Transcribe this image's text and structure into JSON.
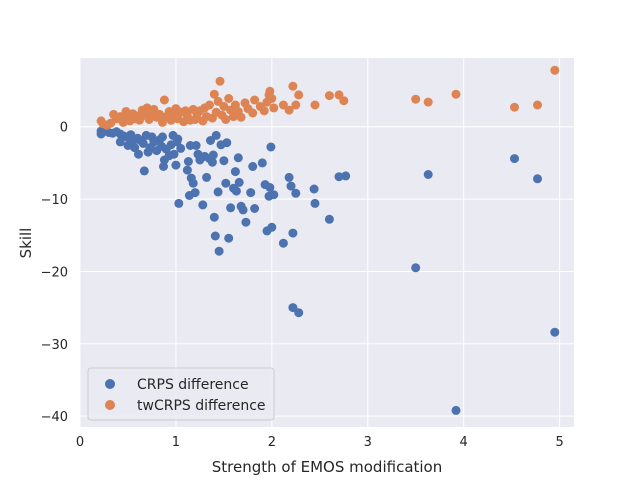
{
  "chart_data": {
    "type": "scatter",
    "title": "",
    "xlabel": "Strength of EMOS modification",
    "ylabel": "Skill",
    "xlim": [
      0,
      5.15
    ],
    "ylim": [
      -41.5,
      9.5
    ],
    "xticks": [
      "0",
      "1",
      "2",
      "3",
      "4",
      "5"
    ],
    "xtick_values": [
      0,
      1,
      2,
      3,
      4,
      5
    ],
    "yticks": [
      "0",
      "−10",
      "−20",
      "−30",
      "−40"
    ],
    "ytick_values": [
      0,
      -10,
      -20,
      -30,
      -40
    ],
    "grid": true,
    "background": "#eaeaf2",
    "legend_position": "lower-left",
    "series": [
      {
        "name": "CRPS difference",
        "color": "#4c72b0",
        "points": [
          [
            0.22,
            -0.6
          ],
          [
            0.22,
            -1.0
          ],
          [
            0.26,
            -0.5
          ],
          [
            0.3,
            -0.8
          ],
          [
            0.34,
            -0.9
          ],
          [
            0.38,
            -0.7
          ],
          [
            0.42,
            -1.0
          ],
          [
            0.42,
            -2.1
          ],
          [
            0.46,
            -1.3
          ],
          [
            0.5,
            -1.5
          ],
          [
            0.5,
            -2.6
          ],
          [
            0.53,
            -1.1
          ],
          [
            0.55,
            -2.0
          ],
          [
            0.57,
            -2.9
          ],
          [
            0.6,
            -1.6
          ],
          [
            0.61,
            -3.8
          ],
          [
            0.63,
            -1.9
          ],
          [
            0.66,
            -2.3
          ],
          [
            0.67,
            -6.1
          ],
          [
            0.69,
            -1.2
          ],
          [
            0.71,
            -3.5
          ],
          [
            0.73,
            -2.9
          ],
          [
            0.75,
            -1.4
          ],
          [
            0.77,
            -2.1
          ],
          [
            0.8,
            -3.3
          ],
          [
            0.83,
            -1.8
          ],
          [
            0.85,
            -2.7
          ],
          [
            0.86,
            -1.4
          ],
          [
            0.87,
            -5.5
          ],
          [
            0.88,
            -4.6
          ],
          [
            0.9,
            -3.1
          ],
          [
            0.93,
            -4.0
          ],
          [
            0.95,
            -2.5
          ],
          [
            0.97,
            -1.2
          ],
          [
            0.98,
            -3.8
          ],
          [
            1.0,
            -5.3
          ],
          [
            1.01,
            -2.1
          ],
          [
            1.02,
            -1.7
          ],
          [
            1.03,
            -10.6
          ],
          [
            1.05,
            -3.0
          ],
          [
            1.12,
            -6.0
          ],
          [
            1.13,
            -4.8
          ],
          [
            1.14,
            -9.5
          ],
          [
            1.15,
            -2.6
          ],
          [
            1.16,
            -7.1
          ],
          [
            1.18,
            -7.8
          ],
          [
            1.2,
            -9.1
          ],
          [
            1.21,
            -2.6
          ],
          [
            1.23,
            -3.8
          ],
          [
            1.25,
            -4.6
          ],
          [
            1.28,
            -10.8
          ],
          [
            1.3,
            -4.1
          ],
          [
            1.32,
            -7.0
          ],
          [
            1.35,
            -4.4
          ],
          [
            1.36,
            -1.9
          ],
          [
            1.38,
            -4.9
          ],
          [
            1.39,
            -3.9
          ],
          [
            1.4,
            -12.5
          ],
          [
            1.41,
            -15.1
          ],
          [
            1.42,
            -1.2
          ],
          [
            1.44,
            -9.0
          ],
          [
            1.45,
            -17.2
          ],
          [
            1.47,
            -2.5
          ],
          [
            1.5,
            -4.7
          ],
          [
            1.52,
            -7.8
          ],
          [
            1.53,
            -2.2
          ],
          [
            1.55,
            -15.4
          ],
          [
            1.57,
            -11.2
          ],
          [
            1.6,
            -8.5
          ],
          [
            1.62,
            -6.2
          ],
          [
            1.63,
            -8.9
          ],
          [
            1.65,
            -4.3
          ],
          [
            1.66,
            -7.7
          ],
          [
            1.68,
            -11.0
          ],
          [
            1.7,
            -11.5
          ],
          [
            1.73,
            -13.2
          ],
          [
            1.78,
            -9.1
          ],
          [
            1.8,
            -5.5
          ],
          [
            1.82,
            -11.3
          ],
          [
            1.9,
            -5.0
          ],
          [
            1.93,
            -8.0
          ],
          [
            1.95,
            -14.4
          ],
          [
            1.97,
            -9.6
          ],
          [
            1.98,
            -8.4
          ],
          [
            1.99,
            -2.8
          ],
          [
            2.0,
            -13.9
          ],
          [
            2.02,
            -9.4
          ],
          [
            2.12,
            -16.1
          ],
          [
            2.18,
            -7.0
          ],
          [
            2.2,
            -8.2
          ],
          [
            2.22,
            -14.7
          ],
          [
            2.22,
            -25.0
          ],
          [
            2.25,
            -9.2
          ],
          [
            2.28,
            -25.7
          ],
          [
            2.44,
            -8.6
          ],
          [
            2.45,
            -10.6
          ],
          [
            2.6,
            -12.8
          ],
          [
            2.7,
            -6.9
          ],
          [
            2.77,
            -6.8
          ],
          [
            3.5,
            -19.5
          ],
          [
            3.63,
            -6.6
          ],
          [
            3.92,
            -39.2
          ],
          [
            4.53,
            -4.4
          ],
          [
            4.77,
            -7.2
          ],
          [
            4.95,
            -28.4
          ]
        ]
      },
      {
        "name": "twCRPS difference",
        "color": "#dd8452",
        "points": [
          [
            0.22,
            0.8
          ],
          [
            0.24,
            0.4
          ],
          [
            0.28,
            0.2
          ],
          [
            0.32,
            0.5
          ],
          [
            0.35,
            1.7
          ],
          [
            0.38,
            1.1
          ],
          [
            0.42,
            1.4
          ],
          [
            0.45,
            0.6
          ],
          [
            0.48,
            2.1
          ],
          [
            0.5,
            1.2
          ],
          [
            0.52,
            0.8
          ],
          [
            0.55,
            1.8
          ],
          [
            0.57,
            1.1
          ],
          [
            0.6,
            1.5
          ],
          [
            0.62,
            0.9
          ],
          [
            0.65,
            2.3
          ],
          [
            0.67,
            1.6
          ],
          [
            0.7,
            2.6
          ],
          [
            0.72,
            1.0
          ],
          [
            0.74,
            1.9
          ],
          [
            0.77,
            2.4
          ],
          [
            0.8,
            1.3
          ],
          [
            0.83,
            1.7
          ],
          [
            0.86,
            0.6
          ],
          [
            0.88,
            3.7
          ],
          [
            0.9,
            1.4
          ],
          [
            0.93,
            2.1
          ],
          [
            0.95,
            0.9
          ],
          [
            0.97,
            1.8
          ],
          [
            1.0,
            2.5
          ],
          [
            1.02,
            1.1
          ],
          [
            1.05,
            2.0
          ],
          [
            1.08,
            0.7
          ],
          [
            1.1,
            2.2
          ],
          [
            1.12,
            1.5
          ],
          [
            1.15,
            0.9
          ],
          [
            1.18,
            2.4
          ],
          [
            1.2,
            1.0
          ],
          [
            1.22,
            1.7
          ],
          [
            1.25,
            2.2
          ],
          [
            1.28,
            0.8
          ],
          [
            1.3,
            2.6
          ],
          [
            1.32,
            1.4
          ],
          [
            1.35,
            3.0
          ],
          [
            1.38,
            1.2
          ],
          [
            1.4,
            4.5
          ],
          [
            1.42,
            2.0
          ],
          [
            1.44,
            3.5
          ],
          [
            1.46,
            6.3
          ],
          [
            1.48,
            1.6
          ],
          [
            1.5,
            2.8
          ],
          [
            1.52,
            1.0
          ],
          [
            1.55,
            3.9
          ],
          [
            1.57,
            2.3
          ],
          [
            1.6,
            1.4
          ],
          [
            1.62,
            3.0
          ],
          [
            1.65,
            2.1
          ],
          [
            1.68,
            1.3
          ],
          [
            1.72,
            3.3
          ],
          [
            1.75,
            2.5
          ],
          [
            1.8,
            1.9
          ],
          [
            1.82,
            3.7
          ],
          [
            1.88,
            2.8
          ],
          [
            1.92,
            2.2
          ],
          [
            1.95,
            3.4
          ],
          [
            1.97,
            4.4
          ],
          [
            1.98,
            4.9
          ],
          [
            2.0,
            3.9
          ],
          [
            2.02,
            2.6
          ],
          [
            2.12,
            3.0
          ],
          [
            2.18,
            2.3
          ],
          [
            2.22,
            5.6
          ],
          [
            2.25,
            3.0
          ],
          [
            2.28,
            4.4
          ],
          [
            2.45,
            3.0
          ],
          [
            2.6,
            4.3
          ],
          [
            2.7,
            4.4
          ],
          [
            2.75,
            3.6
          ],
          [
            3.5,
            3.8
          ],
          [
            3.63,
            3.4
          ],
          [
            3.92,
            4.5
          ],
          [
            4.53,
            2.7
          ],
          [
            4.77,
            3.0
          ],
          [
            4.95,
            7.8
          ]
        ]
      }
    ]
  }
}
